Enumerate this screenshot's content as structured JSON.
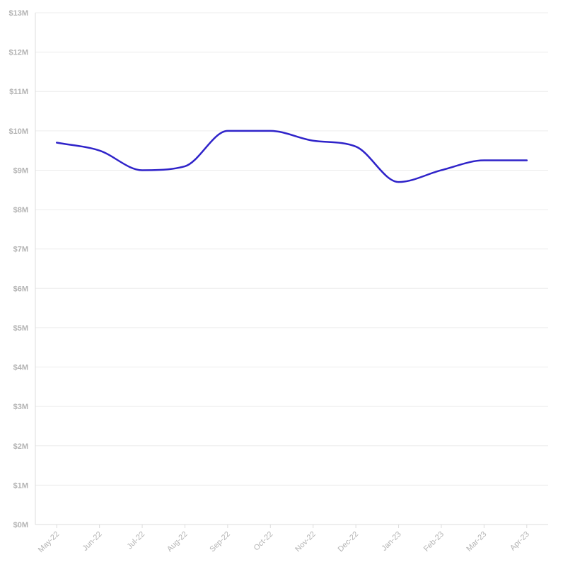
{
  "chart_data": {
    "type": "line",
    "title": "",
    "xlabel": "",
    "ylabel": "",
    "categories": [
      "May-22",
      "Jun-22",
      "Jul-22",
      "Aug-22",
      "Sep-22",
      "Oct-22",
      "Nov-22",
      "Dec-22",
      "Jan-23",
      "Feb-23",
      "Mar-23",
      "Apr-23"
    ],
    "series": [
      {
        "values": [
          9.7,
          9.5,
          9.0,
          9.1,
          10.0,
          10.0,
          9.75,
          9.6,
          8.7,
          9.0,
          9.25,
          9.25
        ]
      }
    ],
    "y_unit": "million USD",
    "ylim": [
      0,
      13
    ],
    "yticks": [
      "$0M",
      "$1M",
      "$2M",
      "$3M",
      "$4M",
      "$5M",
      "$6M",
      "$7M",
      "$8M",
      "$9M",
      "$10M",
      "$11M",
      "$12M",
      "$13M"
    ],
    "grid": true,
    "legend": "none",
    "line_color": "#2f23c9"
  }
}
